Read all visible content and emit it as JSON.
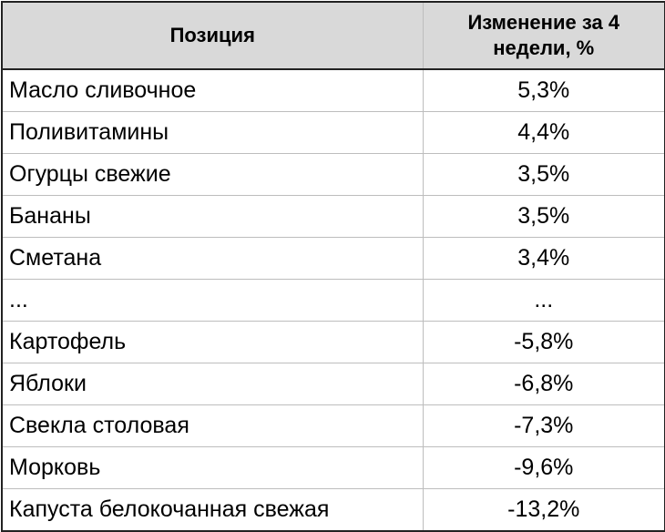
{
  "table": {
    "headers": {
      "position": "Позиция",
      "change_line1": "Изменение за 4",
      "change_line2": "недели, %"
    },
    "rows": [
      {
        "name": "Масло сливочное",
        "change": "5,3%"
      },
      {
        "name": "Поливитамины",
        "change": "4,4%"
      },
      {
        "name": "Огурцы свежие",
        "change": "3,5%"
      },
      {
        "name": "Бананы",
        "change": "3,5%"
      },
      {
        "name": "Сметана",
        "change": "3,4%"
      },
      {
        "name": "...",
        "change": "..."
      },
      {
        "name": "Картофель",
        "change": "-5,8%"
      },
      {
        "name": "Яблоки",
        "change": "-6,8%"
      },
      {
        "name": "Свекла столовая",
        "change": "-7,3%"
      },
      {
        "name": "Морковь",
        "change": "-9,6%"
      },
      {
        "name": "Капуста белокочанная свежая",
        "change": "-13,2%"
      }
    ]
  },
  "colors": {
    "header_bg": "#d9d9d9",
    "border": "#222222",
    "grid": "#bdbdbd"
  }
}
